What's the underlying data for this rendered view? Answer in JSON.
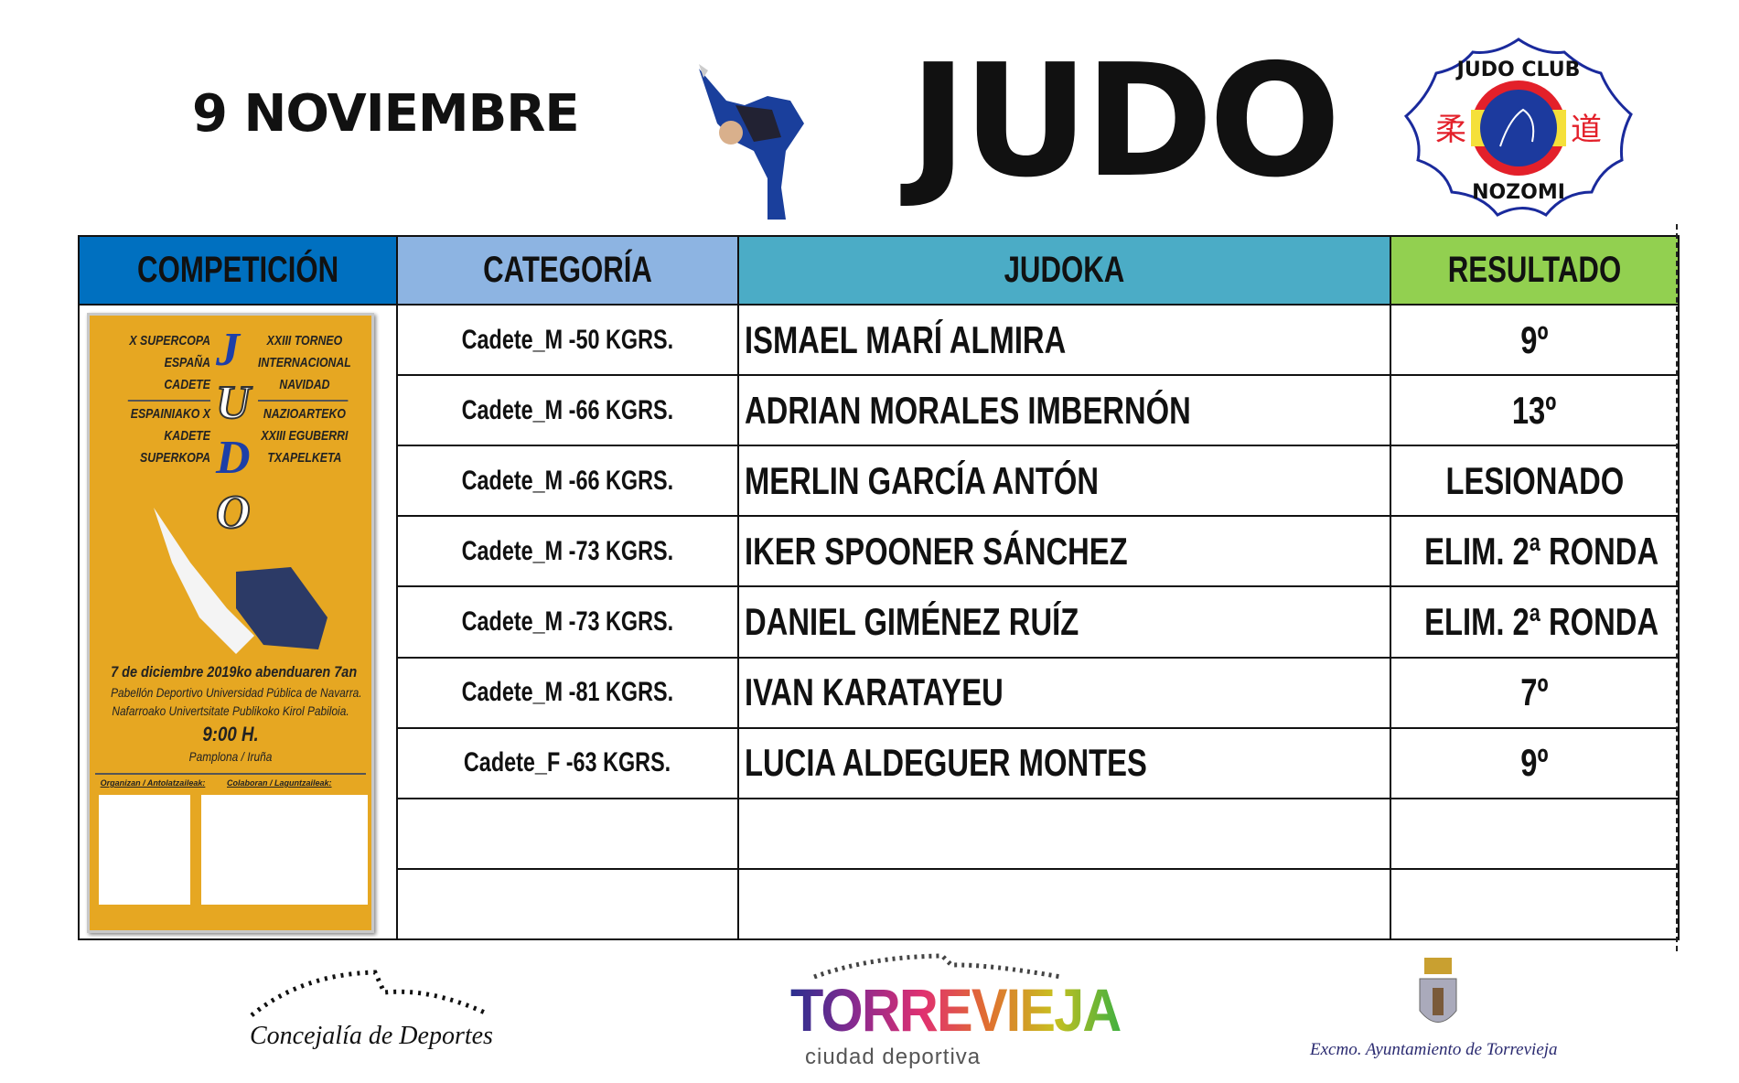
{
  "header": {
    "date": "9 NOVIEMBRE",
    "title": "JUDO",
    "club_logo": {
      "top": "JUDO CLUB",
      "bottom": "NOZOMI",
      "kanji_left": "柔",
      "kanji_right": "道"
    }
  },
  "table": {
    "headers": [
      "COMPETICIÓN",
      "CATEGORÍA",
      "JUDOKA",
      "RESULTADO"
    ],
    "header_colors": [
      "#0070c0",
      "#8db4e2",
      "#4bacc6",
      "#92d050"
    ],
    "rows": [
      {
        "category": "Cadete_M -50 KGRS.",
        "judoka": "ISMAEL MARÍ ALMIRA",
        "result": "9º"
      },
      {
        "category": "Cadete_M -66 KGRS.",
        "judoka": "ADRIAN MORALES IMBERNÓN",
        "result": "13º"
      },
      {
        "category": "Cadete_M -66 KGRS.",
        "judoka": "MERLIN GARCÍA ANTÓN",
        "result": "LESIONADO"
      },
      {
        "category": "Cadete_M -73 KGRS.",
        "judoka": "IKER SPOONER SÁNCHEZ",
        "result": "ELIM. 2ª RONDA"
      },
      {
        "category": "Cadete_M -73 KGRS.",
        "judoka": "DANIEL GIMÉNEZ RUÍZ",
        "result": "ELIM. 2ª RONDA"
      },
      {
        "category": "Cadete_M -81 KGRS.",
        "judoka": "IVAN KARATAYEU",
        "result": "7º"
      },
      {
        "category": "Cadete_F -63 KGRS.",
        "judoka": "LUCIA ALDEGUER MONTES",
        "result": "9º"
      },
      {
        "category": "",
        "judoka": "",
        "result": ""
      },
      {
        "category": "",
        "judoka": "",
        "result": ""
      }
    ]
  },
  "poster": {
    "left_lines": [
      "X SUPERCOPA",
      "ESPAÑA",
      "CADETE",
      "ESPAINIAKO X",
      "KADETE",
      "SUPERKOPA"
    ],
    "right_lines": [
      "XXIII TORNEO",
      "INTERNACIONAL",
      "NAVIDAD",
      "NAZIOARTEKO",
      "XXIII EGUBERRI",
      "TXAPELKETA"
    ],
    "letters": [
      "J",
      "U",
      "D",
      "O"
    ],
    "date": "7 de diciembre 2019ko abenduaren 7an",
    "venue_es": "Pabellón Deportivo Universidad Pública de Navarra.",
    "venue_eu": "Nafarroako Univertsitate Publikoko Kirol Pabiloia.",
    "time": "9:00 H.",
    "city": "Pamplona / Iruña",
    "organizers": "Organizan / Antolatzaileak:",
    "collaborators": "Colaboran / Laguntzaileak:",
    "background": "#e6a722"
  },
  "footer": {
    "left": "Concejalía de Deportes",
    "center_brand": "TORREVIEJA",
    "center_sub": "ciudad deportiva",
    "right": "Excmo. Ayuntamiento de Torrevieja"
  }
}
